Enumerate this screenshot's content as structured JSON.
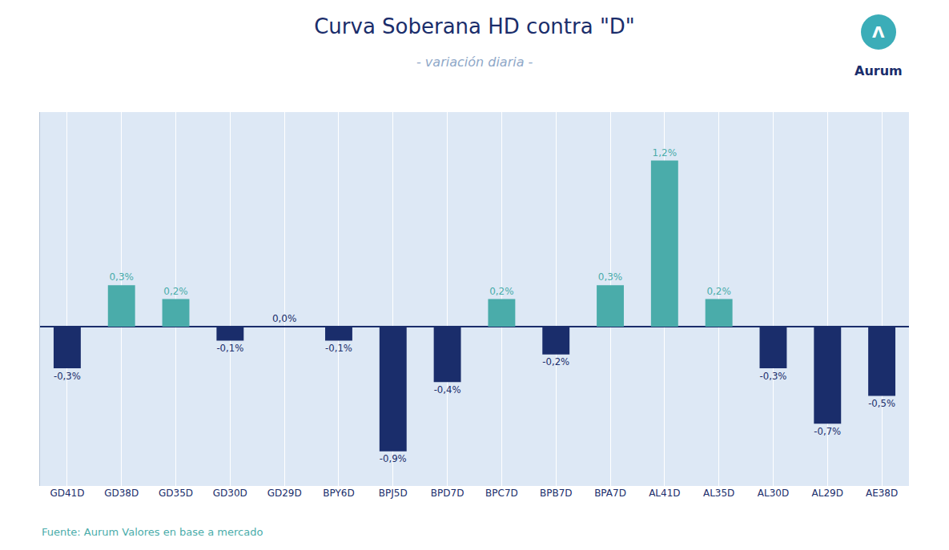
{
  "chart_data": {
    "type": "bar",
    "title": "Curva Soberana HD contra \"D\"",
    "subtitle": "- variación diaria -",
    "annotations": [
      "Fuente: Aurum Valores en base a mercado",
      "Λ",
      "Aurum"
    ],
    "categories": [
      "GD41D",
      "GD38D",
      "GD35D",
      "GD30D",
      "GD29D",
      "BPY6D",
      "BPJ5D",
      "BPD7D",
      "BPC7D",
      "BPB7D",
      "BPA7D",
      "AL41D",
      "AL35D",
      "AL30D",
      "AL29D",
      "AE38D"
    ],
    "values": [
      -0.3,
      0.3,
      0.2,
      -0.1,
      0.0,
      -0.1,
      -0.9,
      -0.4,
      0.2,
      -0.2,
      0.3,
      1.2,
      0.2,
      -0.3,
      -0.7,
      -0.5
    ],
    "value_labels": [
      "-0,3%",
      "0,3%",
      "0,2%",
      "-0,1%",
      "0,0%",
      "-0,1%",
      "-0,9%",
      "-0,4%",
      "0,2%",
      "-0,2%",
      "0,3%",
      "1,2%",
      "0,2%",
      "-0,3%",
      "-0,7%",
      "-0,5%"
    ],
    "data_labels": true,
    "colors": [
      "#1a2d6b",
      "#4aacaa",
      "#4aacaa",
      "#1a2d6b",
      "#1a2d6b",
      "#1a2d6b",
      "#1a2d6b",
      "#1a2d6b",
      "#4aacaa",
      "#1a2d6b",
      "#4aacaa",
      "#4aacaa",
      "#4aacaa",
      "#1a2d6b",
      "#1a2d6b",
      "#1a2d6b"
    ],
    "ylim": [
      -1.15,
      1.55
    ],
    "yticks": [],
    "grid": true,
    "tick_labels": "x"
  }
}
